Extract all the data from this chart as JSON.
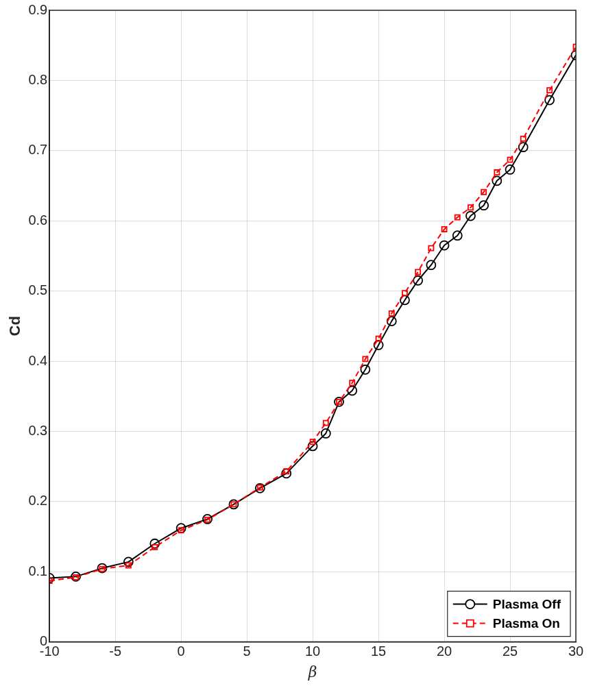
{
  "chart_data": {
    "type": "line",
    "xlabel": "β",
    "ylabel": "Cd",
    "xlim": [
      -10,
      30
    ],
    "xticks": [
      -10,
      -5,
      0,
      5,
      10,
      15,
      20,
      25,
      30
    ],
    "ylim": [
      0,
      0.9
    ],
    "yticks": [
      0,
      0.1,
      0.2,
      0.3,
      0.4,
      0.5,
      0.6,
      0.7,
      0.8,
      0.9
    ],
    "grid": true,
    "legend": "bottom right",
    "x": [
      -10,
      -8,
      -6,
      -4,
      -2,
      0,
      2,
      4,
      6,
      8,
      10,
      11,
      12,
      13,
      14,
      15,
      16,
      17,
      18,
      19,
      20,
      21,
      22,
      23,
      24,
      25,
      26,
      28,
      30
    ],
    "series": [
      {
        "name": "Plasma Off",
        "color": "#000000",
        "marker": "circle",
        "line_style": "solid",
        "values": [
          0.091,
          0.093,
          0.105,
          0.114,
          0.14,
          0.162,
          0.175,
          0.196,
          0.219,
          0.24,
          0.279,
          0.297,
          0.342,
          0.358,
          0.388,
          0.423,
          0.457,
          0.487,
          0.515,
          0.537,
          0.565,
          0.579,
          0.607,
          0.622,
          0.657,
          0.673,
          0.705,
          0.772,
          0.836
        ]
      },
      {
        "name": "Plasma On",
        "color": "#ff0000",
        "marker": "square",
        "line_style": "dashed",
        "values": [
          0.087,
          0.092,
          0.104,
          0.109,
          0.135,
          0.159,
          0.174,
          0.196,
          0.22,
          0.243,
          0.285,
          0.312,
          0.342,
          0.369,
          0.403,
          0.432,
          0.468,
          0.497,
          0.527,
          0.561,
          0.588,
          0.605,
          0.619,
          0.641,
          0.669,
          0.687,
          0.717,
          0.786,
          0.848
        ]
      }
    ]
  }
}
